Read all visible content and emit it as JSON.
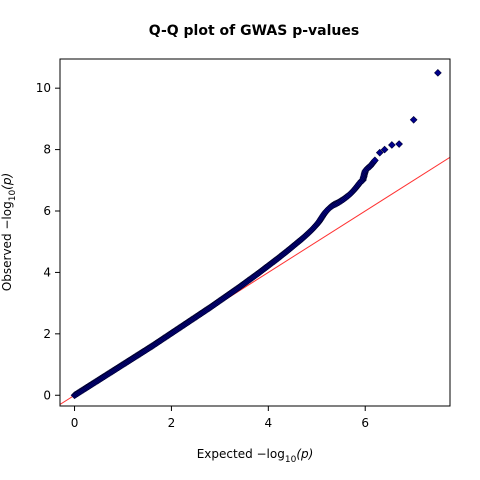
{
  "chart_data": {
    "type": "scatter",
    "title": "Q-Q plot of GWAS p-values",
    "xlabel": {
      "prefix": "Expected  −log",
      "sub": "10",
      "suffix": "(p)"
    },
    "ylabel": {
      "prefix": "Observed  −log",
      "sub": "10",
      "suffix": "(p)"
    },
    "xlim": [
      -0.3,
      7.75
    ],
    "ylim": [
      -0.35,
      10.95
    ],
    "x_ticks": [
      0,
      2,
      4,
      6
    ],
    "y_ticks": [
      0,
      2,
      4,
      6,
      8,
      10
    ],
    "grid": false,
    "series": [
      {
        "kind": "points",
        "marker": "diamond",
        "color": "#00008b",
        "edge_color": "#000033",
        "x": [
          0.0,
          0.2,
          0.4,
          0.6,
          0.8,
          1.0,
          1.2,
          1.4,
          1.6,
          1.8,
          2.0,
          2.2,
          2.4,
          2.6,
          2.8,
          3.0,
          3.2,
          3.4,
          3.6,
          3.8,
          4.0,
          4.2,
          4.4,
          4.5,
          4.6,
          4.7,
          4.8,
          4.9,
          5.0,
          5.05,
          5.1,
          5.15,
          5.2,
          5.25,
          5.3,
          5.35,
          5.4,
          5.45,
          5.5,
          5.55,
          5.6,
          5.65,
          5.7,
          5.75,
          5.8,
          5.85,
          5.9,
          5.92,
          5.95,
          6.0,
          6.05,
          6.1,
          6.15,
          6.2,
          6.3,
          6.4,
          6.55,
          6.7,
          7.0,
          7.5
        ],
        "y": [
          0.0,
          0.2,
          0.4,
          0.6,
          0.8,
          1.0,
          1.2,
          1.4,
          1.6,
          1.81,
          2.02,
          2.23,
          2.44,
          2.65,
          2.86,
          3.08,
          3.3,
          3.52,
          3.75,
          3.98,
          4.22,
          4.46,
          4.71,
          4.84,
          4.97,
          5.1,
          5.24,
          5.39,
          5.56,
          5.66,
          5.78,
          5.9,
          6.0,
          6.08,
          6.15,
          6.2,
          6.24,
          6.28,
          6.33,
          6.38,
          6.44,
          6.5,
          6.57,
          6.65,
          6.74,
          6.84,
          6.94,
          6.98,
          7.0,
          7.3,
          7.4,
          7.45,
          7.55,
          7.65,
          7.9,
          8.0,
          8.15,
          8.18,
          8.97,
          10.5
        ]
      },
      {
        "kind": "reference-line",
        "color": "#ff3333",
        "slope": 1,
        "intercept": 0
      }
    ]
  }
}
